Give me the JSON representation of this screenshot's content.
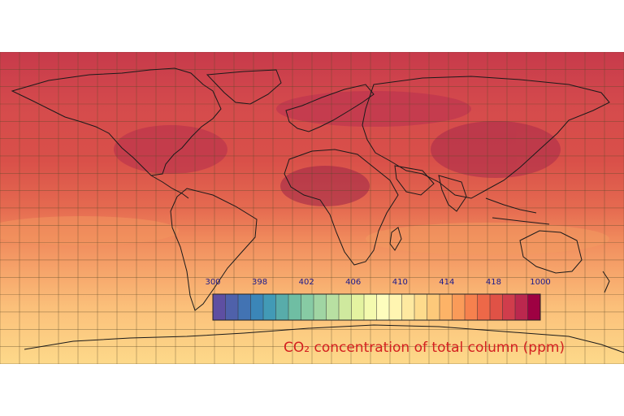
{
  "map": {
    "title": "CO₂ concentration of total column (ppm)",
    "projection": "equirectangular",
    "gridlines": true,
    "coastlines": true
  },
  "colorbar": {
    "tick_labels": [
      "300",
      "398",
      "402",
      "406",
      "410",
      "414",
      "418",
      "1000"
    ],
    "colors": [
      "#5e4fa2",
      "#4f61aa",
      "#4273b3",
      "#3b86b8",
      "#429ab6",
      "#58acaa",
      "#6fbea3",
      "#87cba4",
      "#a0d5a3",
      "#b8e0a2",
      "#cfe99e",
      "#e4f3a0",
      "#f4faae",
      "#fefdbd",
      "#fff5b1",
      "#fee9a0",
      "#fedb8c",
      "#fdc97a",
      "#fdb367",
      "#fa9b59",
      "#f6814e",
      "#ed6848",
      "#e05246",
      "#d03d4c",
      "#bb284e",
      "#9e0142"
    ]
  }
}
